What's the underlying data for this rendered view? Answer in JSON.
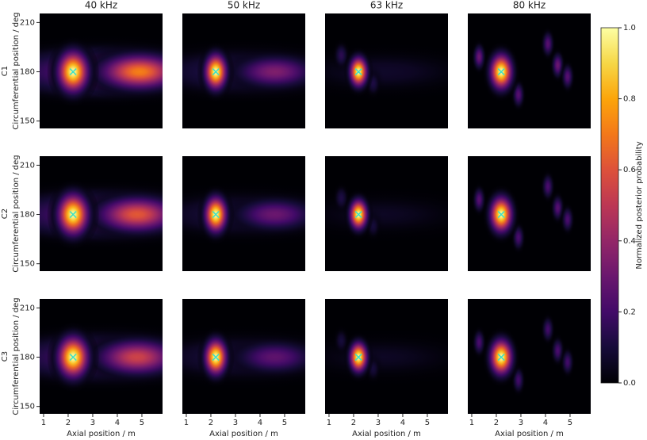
{
  "chart_data": {
    "type": "heatmap",
    "column_titles": [
      "40 kHz",
      "50 kHz",
      "63 kHz",
      "80 kHz"
    ],
    "row_labels": [
      "C1",
      "C2",
      "C3"
    ],
    "ylabel": "Circumferential position / deg",
    "xlabel": "Axial position / m",
    "xlim": [
      0.84,
      5.84
    ],
    "xticks": [
      1,
      2,
      3,
      4,
      5
    ],
    "ylim": [
      145.5,
      215.5
    ],
    "yticks": [
      150,
      180,
      210
    ],
    "colormap": "inferno",
    "marker_color": "#3fe0c8",
    "colorbar": {
      "label": "Normalized posterior probability",
      "lim": [
        0,
        1
      ],
      "ticks": [
        {
          "value": 0,
          "label": "0.0"
        },
        0.2,
        0.4,
        0.6,
        0.8,
        {
          "value": 1,
          "label": "1.0"
        }
      ]
    },
    "panels": [
      [
        {
          "blobs": [
            {
              "x": 3.4,
              "y": 180,
              "value": 0.3,
              "sx": 2.2,
              "sy": 8
            },
            {
              "x": 4.9,
              "y": 180,
              "value": 0.72,
              "sx": 0.9,
              "sy": 6
            },
            {
              "x": 2.2,
              "y": 180,
              "value": 1,
              "sx": 0.35,
              "sy": 7
            }
          ],
          "markers": [
            {
              "x": 2.2,
              "y": 180
            }
          ]
        },
        {
          "blobs": [
            {
              "x": 3.4,
              "y": 180,
              "value": 0.15,
              "sx": 2.2,
              "sy": 8
            },
            {
              "x": 4.6,
              "y": 180,
              "value": 0.35,
              "sx": 0.9,
              "sy": 5.5
            },
            {
              "x": 2.2,
              "y": 180,
              "value": 1,
              "sx": 0.25,
              "sy": 6
            }
          ],
          "markers": [
            {
              "x": 2.2,
              "y": 180
            }
          ]
        },
        {
          "blobs": [
            {
              "x": 3.2,
              "y": 180,
              "value": 0.07,
              "sx": 2.2,
              "sy": 8
            },
            {
              "x": 1.5,
              "y": 190,
              "value": 0.15,
              "sx": 0.15,
              "sy": 4
            },
            {
              "x": 2.8,
              "y": 173,
              "value": 0.12,
              "sx": 0.15,
              "sy": 4
            },
            {
              "x": 2.2,
              "y": 180,
              "value": 1,
              "sx": 0.2,
              "sy": 5
            }
          ],
          "markers": [
            {
              "x": 2.2,
              "y": 180
            }
          ]
        },
        {
          "blobs": [
            {
              "x": 1.3,
              "y": 189,
              "value": 0.3,
              "sx": 0.12,
              "sy": 4
            },
            {
              "x": 4.1,
              "y": 197,
              "value": 0.25,
              "sx": 0.12,
              "sy": 4
            },
            {
              "x": 4.5,
              "y": 184,
              "value": 0.3,
              "sx": 0.12,
              "sy": 4
            },
            {
              "x": 4.9,
              "y": 177,
              "value": 0.25,
              "sx": 0.12,
              "sy": 4
            },
            {
              "x": 2.9,
              "y": 166,
              "value": 0.25,
              "sx": 0.12,
              "sy": 4
            },
            {
              "x": 2.2,
              "y": 180,
              "value": 1,
              "sx": 0.25,
              "sy": 6
            }
          ],
          "markers": [
            {
              "x": 2.2,
              "y": 180
            }
          ]
        }
      ],
      [
        {
          "blobs": [
            {
              "x": 3.4,
              "y": 180,
              "value": 0.28,
              "sx": 2.2,
              "sy": 8
            },
            {
              "x": 4.8,
              "y": 180,
              "value": 0.62,
              "sx": 0.9,
              "sy": 6
            },
            {
              "x": 2.2,
              "y": 180,
              "value": 1,
              "sx": 0.35,
              "sy": 7
            }
          ],
          "markers": [
            {
              "x": 2.2,
              "y": 180
            }
          ]
        },
        {
          "blobs": [
            {
              "x": 3.4,
              "y": 180,
              "value": 0.12,
              "sx": 2.2,
              "sy": 8
            },
            {
              "x": 4.6,
              "y": 180,
              "value": 0.3,
              "sx": 0.9,
              "sy": 5.5
            },
            {
              "x": 2.2,
              "y": 180,
              "value": 1,
              "sx": 0.25,
              "sy": 6
            }
          ],
          "markers": [
            {
              "x": 2.2,
              "y": 180
            }
          ]
        },
        {
          "blobs": [
            {
              "x": 3.2,
              "y": 180,
              "value": 0.06,
              "sx": 2.2,
              "sy": 8
            },
            {
              "x": 1.5,
              "y": 190,
              "value": 0.12,
              "sx": 0.15,
              "sy": 4
            },
            {
              "x": 2.8,
              "y": 173,
              "value": 0.1,
              "sx": 0.15,
              "sy": 4
            },
            {
              "x": 2.2,
              "y": 180,
              "value": 1,
              "sx": 0.2,
              "sy": 5
            }
          ],
          "markers": [
            {
              "x": 2.2,
              "y": 180
            }
          ]
        },
        {
          "blobs": [
            {
              "x": 1.3,
              "y": 189,
              "value": 0.25,
              "sx": 0.12,
              "sy": 4
            },
            {
              "x": 4.1,
              "y": 197,
              "value": 0.22,
              "sx": 0.12,
              "sy": 4
            },
            {
              "x": 4.5,
              "y": 184,
              "value": 0.25,
              "sx": 0.12,
              "sy": 4
            },
            {
              "x": 4.9,
              "y": 177,
              "value": 0.22,
              "sx": 0.12,
              "sy": 4
            },
            {
              "x": 2.9,
              "y": 166,
              "value": 0.22,
              "sx": 0.12,
              "sy": 4
            },
            {
              "x": 2.2,
              "y": 180,
              "value": 1,
              "sx": 0.25,
              "sy": 6
            }
          ],
          "markers": [
            {
              "x": 2.2,
              "y": 180
            }
          ]
        }
      ],
      [
        {
          "blobs": [
            {
              "x": 3.4,
              "y": 180,
              "value": 0.25,
              "sx": 2.2,
              "sy": 8
            },
            {
              "x": 4.8,
              "y": 180,
              "value": 0.55,
              "sx": 0.9,
              "sy": 6
            },
            {
              "x": 2.2,
              "y": 180,
              "value": 1,
              "sx": 0.35,
              "sy": 7
            }
          ],
          "markers": [
            {
              "x": 2.2,
              "y": 180
            }
          ]
        },
        {
          "blobs": [
            {
              "x": 3.4,
              "y": 180,
              "value": 0.12,
              "sx": 2.2,
              "sy": 8
            },
            {
              "x": 4.6,
              "y": 180,
              "value": 0.27,
              "sx": 0.9,
              "sy": 5.5
            },
            {
              "x": 2.2,
              "y": 180,
              "value": 1,
              "sx": 0.25,
              "sy": 6
            }
          ],
          "markers": [
            {
              "x": 2.2,
              "y": 180
            }
          ]
        },
        {
          "blobs": [
            {
              "x": 3.2,
              "y": 180,
              "value": 0.06,
              "sx": 2.2,
              "sy": 8
            },
            {
              "x": 1.5,
              "y": 190,
              "value": 0.1,
              "sx": 0.15,
              "sy": 4
            },
            {
              "x": 2.8,
              "y": 173,
              "value": 0.1,
              "sx": 0.15,
              "sy": 4
            },
            {
              "x": 2.2,
              "y": 180,
              "value": 1,
              "sx": 0.2,
              "sy": 5
            }
          ],
          "markers": [
            {
              "x": 2.2,
              "y": 180
            }
          ]
        },
        {
          "blobs": [
            {
              "x": 1.3,
              "y": 189,
              "value": 0.22,
              "sx": 0.12,
              "sy": 4
            },
            {
              "x": 4.1,
              "y": 197,
              "value": 0.2,
              "sx": 0.12,
              "sy": 4
            },
            {
              "x": 4.5,
              "y": 184,
              "value": 0.22,
              "sx": 0.12,
              "sy": 4
            },
            {
              "x": 4.9,
              "y": 177,
              "value": 0.2,
              "sx": 0.12,
              "sy": 4
            },
            {
              "x": 2.9,
              "y": 166,
              "value": 0.2,
              "sx": 0.12,
              "sy": 4
            },
            {
              "x": 2.2,
              "y": 180,
              "value": 1,
              "sx": 0.25,
              "sy": 6
            }
          ],
          "markers": [
            {
              "x": 2.2,
              "y": 180
            }
          ]
        }
      ]
    ]
  }
}
